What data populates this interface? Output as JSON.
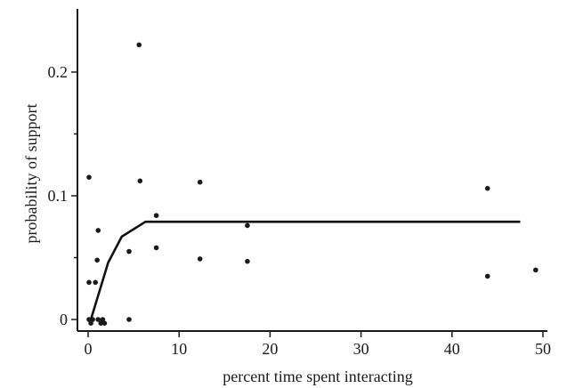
{
  "chart_data": {
    "type": "scatter",
    "title": "",
    "xlabel": "percent time spent interacting",
    "ylabel": "probability of support",
    "xlim": [
      0,
      50
    ],
    "ylim": [
      0,
      0.25
    ],
    "x_ticks": [
      0,
      10,
      20,
      30,
      40,
      50
    ],
    "x_tick_labels": [
      "0",
      "10",
      "20",
      "30",
      "40",
      "50"
    ],
    "y_ticks": [
      0,
      0.1,
      0.2
    ],
    "y_tick_labels": [
      "0",
      "0.1",
      "0.2"
    ],
    "y_minor_ticks": [
      0.05,
      0.15
    ],
    "grid": false,
    "legend": "none",
    "points": [
      {
        "x": 0.1,
        "y": 0.115
      },
      {
        "x": 0.1,
        "y": 0.03
      },
      {
        "x": 0.1,
        "y": 0.0
      },
      {
        "x": 0.3,
        "y": -0.003
      },
      {
        "x": 0.5,
        "y": 0.0
      },
      {
        "x": 0.8,
        "y": 0.03
      },
      {
        "x": 1.0,
        "y": 0.048
      },
      {
        "x": 1.1,
        "y": 0.072
      },
      {
        "x": 1.1,
        "y": 0.0
      },
      {
        "x": 1.4,
        "y": -0.003
      },
      {
        "x": 1.6,
        "y": 0.0
      },
      {
        "x": 1.8,
        "y": -0.003
      },
      {
        "x": 4.5,
        "y": 0.055
      },
      {
        "x": 4.5,
        "y": 0.0
      },
      {
        "x": 5.6,
        "y": 0.222
      },
      {
        "x": 5.7,
        "y": 0.112
      },
      {
        "x": 7.5,
        "y": 0.084
      },
      {
        "x": 7.5,
        "y": 0.058
      },
      {
        "x": 12.3,
        "y": 0.111
      },
      {
        "x": 12.3,
        "y": 0.049
      },
      {
        "x": 17.5,
        "y": 0.076
      },
      {
        "x": 17.5,
        "y": 0.047
      },
      {
        "x": 43.9,
        "y": 0.106
      },
      {
        "x": 43.9,
        "y": 0.035
      },
      {
        "x": 49.2,
        "y": 0.04
      }
    ],
    "fit_line": {
      "x": [
        0.3,
        2.2,
        3.7,
        6.3,
        47.5
      ],
      "y": [
        0.0,
        0.046,
        0.067,
        0.079,
        0.079
      ]
    }
  }
}
